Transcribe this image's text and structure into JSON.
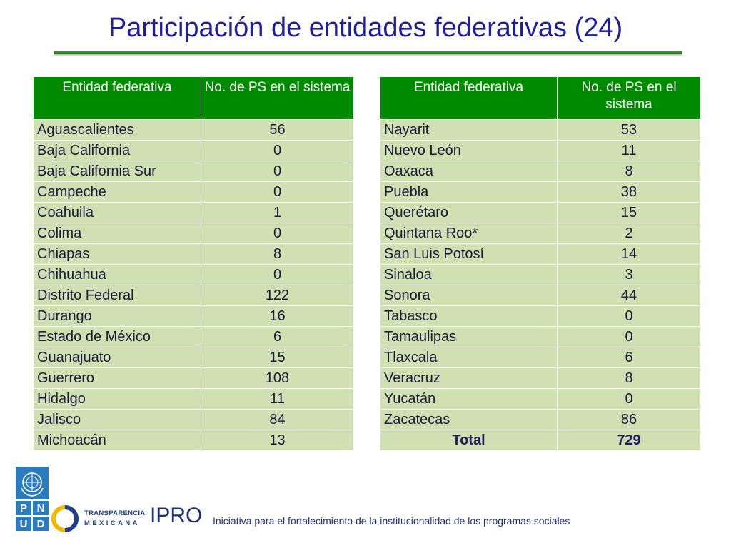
{
  "slide": {
    "title": "Participación de entidades federativas (24)"
  },
  "table_headers": {
    "entity": "Entidad federativa",
    "count": "No. de PS en el sistema"
  },
  "left_rows": [
    {
      "entity": "Aguascalientes",
      "count": "56"
    },
    {
      "entity": "Baja California",
      "count": "0"
    },
    {
      "entity": "Baja California Sur",
      "count": "0"
    },
    {
      "entity": "Campeche",
      "count": "0"
    },
    {
      "entity": "Coahuila",
      "count": "1"
    },
    {
      "entity": "Colima",
      "count": "0"
    },
    {
      "entity": "Chiapas",
      "count": "8"
    },
    {
      "entity": "Chihuahua",
      "count": "0"
    },
    {
      "entity": "Distrito Federal",
      "count": "122"
    },
    {
      "entity": "Durango",
      "count": "16"
    },
    {
      "entity": "Estado de México",
      "count": "6"
    },
    {
      "entity": "Guanajuato",
      "count": "15"
    },
    {
      "entity": "Guerrero",
      "count": "108"
    },
    {
      "entity": "Hidalgo",
      "count": "11"
    },
    {
      "entity": "Jalisco",
      "count": "84"
    },
    {
      "entity": "Michoacán",
      "count": "13"
    }
  ],
  "right_rows": [
    {
      "entity": "Nayarit",
      "count": "53"
    },
    {
      "entity": "Nuevo León",
      "count": "11"
    },
    {
      "entity": "Oaxaca",
      "count": "8"
    },
    {
      "entity": "Puebla",
      "count": "38"
    },
    {
      "entity": "Querétaro",
      "count": "15"
    },
    {
      "entity": "Quintana Roo*",
      "count": "2"
    },
    {
      "entity": "San Luis Potosí",
      "count": "14"
    },
    {
      "entity": "Sinaloa",
      "count": "3"
    },
    {
      "entity": "Sonora",
      "count": "44"
    },
    {
      "entity": "Tabasco",
      "count": "0"
    },
    {
      "entity": "Tamaulipas",
      "count": "0"
    },
    {
      "entity": "Tlaxcala",
      "count": "6"
    },
    {
      "entity": "Veracruz",
      "count": "8"
    },
    {
      "entity": "Yucatán",
      "count": "0"
    },
    {
      "entity": "Zacatecas",
      "count": "86"
    }
  ],
  "total": {
    "label": "Total",
    "value": "729"
  },
  "footer": {
    "pnud_letters": [
      "P",
      "N",
      "U",
      "D"
    ],
    "transparencia_line1": "TRANSPARENCIA",
    "transparencia_line2": "MEXICANA",
    "ipro": "IPRO",
    "tagline": "Iniciativa para el fortalecimiento de la institucionalidad de los programas sociales"
  },
  "colors": {
    "title": "#1f1f9e",
    "header_bg": "#008a00",
    "row_bg": "#cfe0b3",
    "rule": "#2e8b22",
    "un_blue": "#2b7bbf"
  },
  "icons": [
    "un-emblem-icon",
    "transparencia-mexicana-logo-icon"
  ]
}
